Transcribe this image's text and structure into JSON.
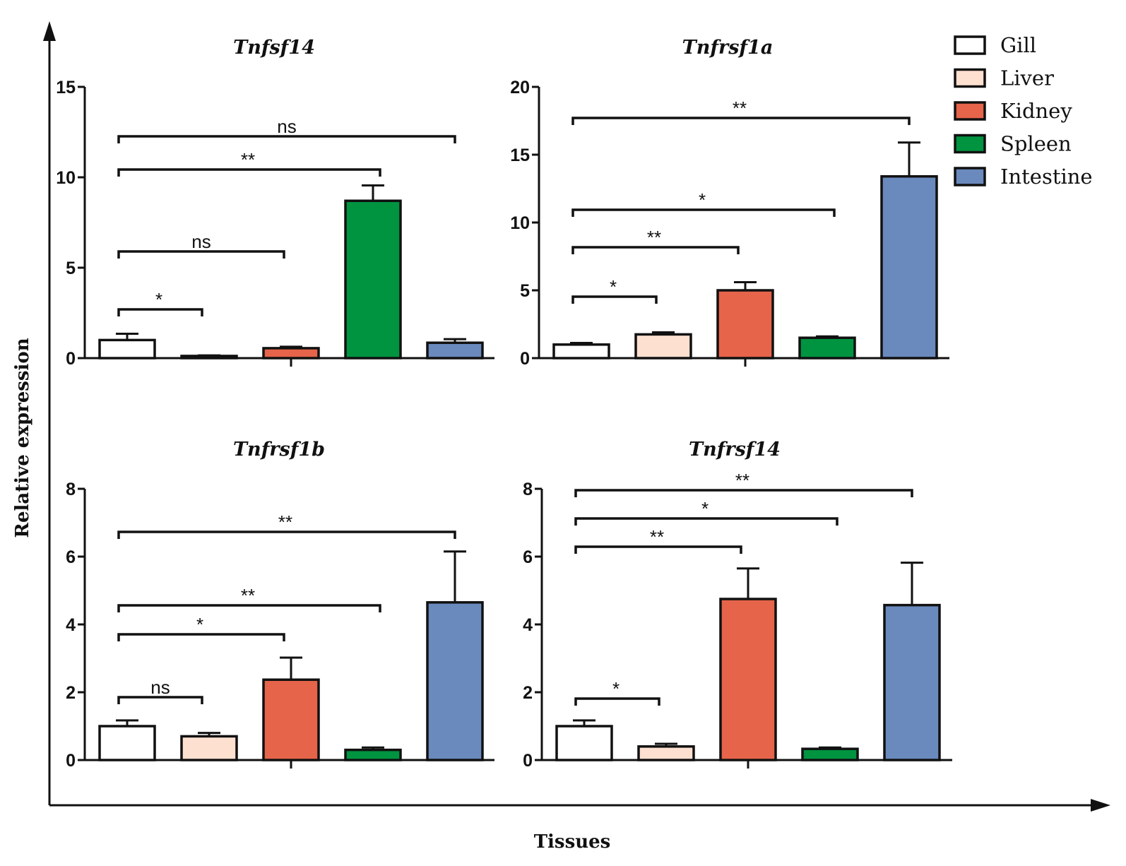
{
  "figure": {
    "ylabel": "Relative expression",
    "xlabel": "Tissues"
  },
  "legend": [
    {
      "label": "Gill",
      "color": "#ffffff"
    },
    {
      "label": "Liver",
      "color": "#fde0cf"
    },
    {
      "label": "Kidney",
      "color": "#e5644a"
    },
    {
      "label": "Spleen",
      "color": "#009440"
    },
    {
      "label": "Intestine",
      "color": "#6a89bd"
    }
  ],
  "chart_data": [
    {
      "type": "bar",
      "title": "Tnfsf14",
      "categories": [
        "Gill",
        "Liver",
        "Kidney",
        "Spleen",
        "Intestine"
      ],
      "values": [
        1.0,
        0.12,
        0.55,
        8.7,
        0.85
      ],
      "errors": [
        0.35,
        0.03,
        0.08,
        0.85,
        0.2
      ],
      "ylim": [
        0,
        15
      ],
      "yticks": [
        "0",
        "5",
        "10",
        "15"
      ],
      "significance": [
        {
          "from": "Gill",
          "to": "Liver",
          "label": "*"
        },
        {
          "from": "Gill",
          "to": "Kidney",
          "label": "ns"
        },
        {
          "from": "Gill",
          "to": "Spleen",
          "label": "**"
        },
        {
          "from": "Gill",
          "to": "Intestine",
          "label": "ns"
        }
      ]
    },
    {
      "type": "bar",
      "title": "Tnfrsf1a",
      "categories": [
        "Gill",
        "Liver",
        "Kidney",
        "Spleen",
        "Intestine"
      ],
      "values": [
        1.0,
        1.75,
        5.0,
        1.5,
        13.4
      ],
      "errors": [
        0.12,
        0.15,
        0.6,
        0.1,
        2.5
      ],
      "ylim": [
        0,
        20
      ],
      "yticks": [
        "0",
        "5",
        "10",
        "15",
        "20"
      ],
      "significance": [
        {
          "from": "Gill",
          "to": "Liver",
          "label": "*"
        },
        {
          "from": "Gill",
          "to": "Kidney",
          "label": "**"
        },
        {
          "from": "Gill",
          "to": "Spleen",
          "label": "*"
        },
        {
          "from": "Gill",
          "to": "Intestine",
          "label": "**"
        }
      ]
    },
    {
      "type": "bar",
      "title": "Tnfrsf1b",
      "categories": [
        "Gill",
        "Liver",
        "Kidney",
        "Spleen",
        "Intestine"
      ],
      "values": [
        1.0,
        0.7,
        2.37,
        0.3,
        4.65
      ],
      "errors": [
        0.17,
        0.1,
        0.65,
        0.07,
        1.5
      ],
      "ylim": [
        0,
        8
      ],
      "yticks": [
        "0",
        "2",
        "4",
        "6",
        "8"
      ],
      "significance": [
        {
          "from": "Gill",
          "to": "Liver",
          "label": "ns"
        },
        {
          "from": "Gill",
          "to": "Kidney",
          "label": "*"
        },
        {
          "from": "Gill",
          "to": "Spleen",
          "label": "**"
        },
        {
          "from": "Gill",
          "to": "Intestine",
          "label": "**"
        }
      ]
    },
    {
      "type": "bar",
      "title": "Tnfrsf14",
      "categories": [
        "Gill",
        "Liver",
        "Kidney",
        "Spleen",
        "Intestine"
      ],
      "values": [
        1.0,
        0.4,
        4.75,
        0.33,
        4.57
      ],
      "errors": [
        0.17,
        0.08,
        0.9,
        0.04,
        1.25
      ],
      "ylim": [
        0,
        8
      ],
      "yticks": [
        "0",
        "2",
        "4",
        "6",
        "8"
      ],
      "significance": [
        {
          "from": "Gill",
          "to": "Liver",
          "label": "*"
        },
        {
          "from": "Gill",
          "to": "Kidney",
          "label": "**"
        },
        {
          "from": "Gill",
          "to": "Spleen",
          "label": "*"
        },
        {
          "from": "Gill",
          "to": "Intestine",
          "label": "**"
        }
      ]
    }
  ]
}
